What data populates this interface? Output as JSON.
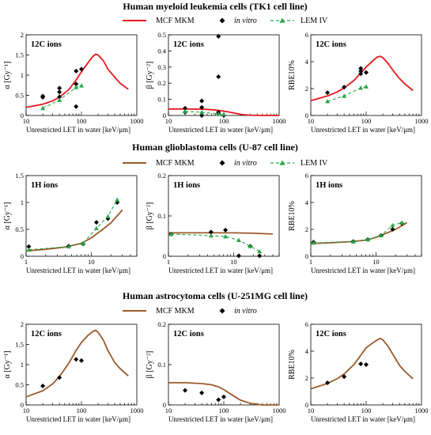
{
  "legend_labels": {
    "mkm": "MCF MKM",
    "invitro": "in vitro",
    "lem": "LEM IV"
  },
  "colors": {
    "mkm_red": "#e8181e",
    "mkm_brown": "#9c5a2a",
    "lem_green": "#2aa64a",
    "point": "#000000"
  },
  "chart_data": [
    {
      "section": "Human myeloid leukemia cells (TK1 cell line)",
      "legend": [
        "MCF MKM",
        "in vitro",
        "LEM IV"
      ],
      "panels": [
        {
          "type": "line",
          "panel_label": "12C ions",
          "ylabel": "α [Gy⁻¹]",
          "xlabel": "Unrestricted LET in water [keV/μm]",
          "xscale": "log",
          "xlim": [
            10,
            1000
          ],
          "ylim": [
            0,
            2
          ],
          "xticks": [
            10,
            100,
            1000
          ],
          "yticks": [
            0,
            0.5,
            1,
            1.5,
            2
          ],
          "series": [
            {
              "name": "MCF MKM",
              "kind": "line",
              "color": "#e8181e",
              "dash": false,
              "x": [
                10,
                20,
                30,
                40,
                60,
                80,
                100,
                130,
                160,
                180,
                200,
                250,
                300,
                400,
                500,
                700
              ],
              "y": [
                0.2,
                0.28,
                0.36,
                0.45,
                0.65,
                0.88,
                1.08,
                1.3,
                1.46,
                1.52,
                1.5,
                1.35,
                1.15,
                0.95,
                0.8,
                0.65
              ]
            },
            {
              "name": "in vitro",
              "kind": "points",
              "color": "#000000",
              "x": [
                20,
                20,
                40,
                40,
                40,
                80,
                80,
                80,
                100
              ],
              "y": [
                0.45,
                0.48,
                0.46,
                0.58,
                0.68,
                0.22,
                0.78,
                1.1,
                1.15
              ]
            },
            {
              "name": "LEM IV",
              "kind": "line+points",
              "color": "#2aa64a",
              "dash": true,
              "x": [
                20,
                40,
                80,
                100
              ],
              "y": [
                0.18,
                0.38,
                0.7,
                0.74
              ]
            }
          ]
        },
        {
          "type": "line",
          "panel_label": "12C ions",
          "ylabel": "β [Gy⁻²]",
          "xlabel": "Unrestricted LET in water [keV/μm]",
          "xscale": "log",
          "xlim": [
            10,
            1000
          ],
          "ylim": [
            0,
            0.5
          ],
          "xticks": [
            10,
            100,
            1000
          ],
          "yticks": [
            0,
            0.1,
            0.2,
            0.3,
            0.4,
            0.5
          ],
          "series": [
            {
              "name": "MCF MKM",
              "kind": "line",
              "color": "#e8181e",
              "dash": false,
              "x": [
                10,
                20,
                40,
                60,
                80,
                100,
                130,
                160,
                200,
                300,
                500,
                1000
              ],
              "y": [
                0.04,
                0.04,
                0.039,
                0.036,
                0.032,
                0.027,
                0.02,
                0.014,
                0.007,
                0.002,
                0.0,
                0.0
              ]
            },
            {
              "name": "in vitro",
              "kind": "points",
              "color": "#000000",
              "x": [
                20,
                20,
                40,
                40,
                40,
                80,
                80,
                80,
                80,
                100
              ],
              "y": [
                0.02,
                0.045,
                0.0,
                0.05,
                0.09,
                0.49,
                0.24,
                0.02,
                0.01,
                0.0
              ]
            },
            {
              "name": "LEM IV",
              "kind": "line+points",
              "color": "#2aa64a",
              "dash": true,
              "x": [
                20,
                40,
                80,
                100
              ],
              "y": [
                0.025,
                0.02,
                0.01,
                0.008
              ]
            }
          ]
        },
        {
          "type": "line",
          "panel_label": "12C ions",
          "ylabel": "RBE10%",
          "xlabel": "Unrestricted LET in water [keV/μm]",
          "xscale": "log",
          "xlim": [
            10,
            1000
          ],
          "ylim": [
            0,
            6
          ],
          "xticks": [
            10,
            100,
            1000
          ],
          "yticks": [
            0,
            2,
            4,
            6
          ],
          "series": [
            {
              "name": "MCF MKM",
              "kind": "line",
              "color": "#e8181e",
              "dash": false,
              "x": [
                10,
                20,
                30,
                40,
                60,
                80,
                100,
                130,
                160,
                180,
                200,
                250,
                300,
                400,
                500,
                700
              ],
              "y": [
                1.1,
                1.45,
                1.75,
                2.05,
                2.6,
                3.15,
                3.6,
                4.05,
                4.35,
                4.4,
                4.3,
                3.85,
                3.4,
                2.75,
                2.35,
                1.85
              ]
            },
            {
              "name": "in vitro",
              "kind": "points",
              "color": "#000000",
              "x": [
                20,
                40,
                80,
                80,
                80,
                100
              ],
              "y": [
                1.7,
                2.1,
                3.1,
                3.3,
                3.5,
                3.2
              ]
            },
            {
              "name": "LEM IV",
              "kind": "line+points",
              "color": "#2aa64a",
              "dash": true,
              "x": [
                20,
                40,
                80,
                100
              ],
              "y": [
                1.05,
                1.45,
                2.05,
                2.15
              ]
            }
          ]
        }
      ]
    },
    {
      "section": "Human glioblastoma cells (U-87 cell line)",
      "legend": [
        "MCF MKM",
        "in vitro",
        "LEM IV"
      ],
      "panels": [
        {
          "type": "line",
          "panel_label": "1H ions",
          "ylabel": "α [Gy⁻¹]",
          "xlabel": "Unrestricted LET in water [keV/μm]",
          "xscale": "log",
          "xlim": [
            1,
            50
          ],
          "ylim": [
            0,
            1.5
          ],
          "xticks": [
            1,
            10
          ],
          "yticks": [
            0,
            0.5,
            1,
            1.5
          ],
          "series": [
            {
              "name": "MCF MKM",
              "kind": "line",
              "color": "#9c5a2a",
              "dash": false,
              "x": [
                1,
                2,
                4,
                7,
                10,
                15,
                20,
                30
              ],
              "y": [
                0.1,
                0.13,
                0.17,
                0.24,
                0.34,
                0.5,
                0.62,
                0.86
              ]
            },
            {
              "name": "in vitro",
              "kind": "points",
              "color": "#000000",
              "x": [
                1.1,
                4.5,
                7.5,
                12,
                18,
                25
              ],
              "y": [
                0.18,
                0.19,
                0.23,
                0.63,
                0.7,
                1.0
              ]
            },
            {
              "name": "LEM IV",
              "kind": "line+points",
              "color": "#2aa64a",
              "dash": true,
              "x": [
                1.1,
                4.5,
                7.5,
                12,
                18,
                25
              ],
              "y": [
                0.12,
                0.18,
                0.24,
                0.52,
                0.74,
                1.05
              ]
            }
          ]
        },
        {
          "type": "line",
          "panel_label": "1H ions",
          "ylabel": "β [Gy⁻²]",
          "xlabel": "Unrestricted LET in water [keV/μm]",
          "xscale": "log",
          "xlim": [
            1,
            50
          ],
          "ylim": [
            0,
            0.2
          ],
          "xticks": [
            1,
            10
          ],
          "yticks": [
            0,
            0.1,
            0.2
          ],
          "series": [
            {
              "name": "MCF MKM",
              "kind": "line",
              "color": "#9c5a2a",
              "dash": false,
              "x": [
                1,
                2,
                5,
                10,
                20,
                40
              ],
              "y": [
                0.058,
                0.058,
                0.058,
                0.058,
                0.057,
                0.055
              ]
            },
            {
              "name": "in vitro",
              "kind": "points",
              "color": "#000000",
              "x": [
                1.1,
                4.5,
                7.5,
                12,
                18,
                25
              ],
              "y": [
                0.055,
                0.06,
                0.065,
                0.001,
                0.025,
                0.001
              ]
            },
            {
              "name": "LEM IV",
              "kind": "line+points",
              "color": "#2aa64a",
              "dash": true,
              "x": [
                1.1,
                4.5,
                7.5,
                12,
                18,
                25
              ],
              "y": [
                0.055,
                0.051,
                0.049,
                0.04,
                0.025,
                0.012
              ]
            }
          ]
        },
        {
          "type": "line",
          "panel_label": "1H ions",
          "ylabel": "RBE10%",
          "xlabel": "Unrestricted LET in water [keV/μm]",
          "xscale": "log",
          "xlim": [
            1,
            50
          ],
          "ylim": [
            0,
            6
          ],
          "xticks": [
            1,
            10
          ],
          "yticks": [
            0,
            2,
            4,
            6
          ],
          "series": [
            {
              "name": "MCF MKM",
              "kind": "line",
              "color": "#9c5a2a",
              "dash": false,
              "x": [
                1,
                2,
                4,
                7,
                10,
                15,
                20,
                30
              ],
              "y": [
                0.95,
                1.0,
                1.08,
                1.2,
                1.4,
                1.75,
                2.0,
                2.5
              ]
            },
            {
              "name": "in vitro",
              "kind": "points",
              "color": "#000000",
              "x": [
                1.1,
                4.5,
                7.5,
                12,
                18,
                25
              ],
              "y": [
                1.05,
                1.1,
                1.25,
                1.55,
                2.0,
                2.45
              ]
            },
            {
              "name": "LEM IV",
              "kind": "line+points",
              "color": "#2aa64a",
              "dash": true,
              "x": [
                1.1,
                4.5,
                7.5,
                12,
                18,
                25
              ],
              "y": [
                1.0,
                1.1,
                1.25,
                1.55,
                2.3,
                2.5
              ]
            }
          ]
        }
      ]
    },
    {
      "section": "Human astrocytoma cells (U-251MG cell line)",
      "legend": [
        "MCF MKM",
        "in vitro"
      ],
      "panels": [
        {
          "type": "line",
          "panel_label": "12C ions",
          "ylabel": "α [Gy⁻¹]",
          "xlabel": "Unrestricted LET in water [keV/μm]",
          "xscale": "log",
          "xlim": [
            10,
            1000
          ],
          "ylim": [
            0,
            2
          ],
          "xticks": [
            10,
            100,
            1000
          ],
          "yticks": [
            0,
            0.5,
            1,
            1.5,
            2
          ],
          "series": [
            {
              "name": "MCF MKM",
              "kind": "line",
              "color": "#9c5a2a",
              "dash": false,
              "x": [
                10,
                20,
                30,
                40,
                60,
                80,
                100,
                130,
                160,
                180,
                200,
                250,
                300,
                400,
                500,
                700
              ],
              "y": [
                0.2,
                0.35,
                0.52,
                0.7,
                1.05,
                1.35,
                1.55,
                1.72,
                1.82,
                1.85,
                1.8,
                1.6,
                1.35,
                1.05,
                0.9,
                0.72
              ]
            },
            {
              "name": "in vitro",
              "kind": "points",
              "color": "#000000",
              "x": [
                20,
                40,
                80,
                100
              ],
              "y": [
                0.47,
                0.68,
                1.13,
                1.1
              ]
            }
          ]
        },
        {
          "type": "line",
          "panel_label": "12C ions",
          "ylabel": "β [Gy⁻²]",
          "xlabel": "Unrestricted LET in water [keV/μm]",
          "xscale": "log",
          "xlim": [
            10,
            1000
          ],
          "ylim": [
            0,
            0.2
          ],
          "xticks": [
            10,
            100,
            1000
          ],
          "yticks": [
            0,
            0.1,
            0.2
          ],
          "series": [
            {
              "name": "MCF MKM",
              "kind": "line",
              "color": "#9c5a2a",
              "dash": false,
              "x": [
                10,
                20,
                40,
                60,
                80,
                100,
                130,
                160,
                200,
                300,
                500,
                1000
              ],
              "y": [
                0.055,
                0.055,
                0.053,
                0.05,
                0.045,
                0.038,
                0.028,
                0.02,
                0.012,
                0.004,
                0.0,
                0.0
              ]
            },
            {
              "name": "in vitro",
              "kind": "points",
              "color": "#000000",
              "x": [
                20,
                40,
                80,
                100
              ],
              "y": [
                0.036,
                0.03,
                0.013,
                0.02
              ]
            }
          ]
        },
        {
          "type": "line",
          "panel_label": "12C ions",
          "ylabel": "RBE10%",
          "xlabel": "Unrestricted LET in water [keV/μm]",
          "xscale": "log",
          "xlim": [
            10,
            1000
          ],
          "ylim": [
            0,
            6
          ],
          "xticks": [
            10,
            100,
            1000
          ],
          "yticks": [
            0,
            2,
            4,
            6
          ],
          "series": [
            {
              "name": "MCF MKM",
              "kind": "line",
              "color": "#9c5a2a",
              "dash": false,
              "x": [
                10,
                20,
                30,
                40,
                60,
                80,
                100,
                130,
                160,
                180,
                200,
                250,
                300,
                400,
                500,
                700
              ],
              "y": [
                1.2,
                1.6,
                1.95,
                2.3,
                3.0,
                3.7,
                4.25,
                4.6,
                4.85,
                4.95,
                4.85,
                4.35,
                3.8,
                2.95,
                2.5,
                1.95
              ]
            },
            {
              "name": "in vitro",
              "kind": "points",
              "color": "#000000",
              "x": [
                20,
                40,
                80,
                100
              ],
              "y": [
                1.65,
                2.1,
                3.05,
                3.0
              ]
            }
          ]
        }
      ]
    }
  ]
}
